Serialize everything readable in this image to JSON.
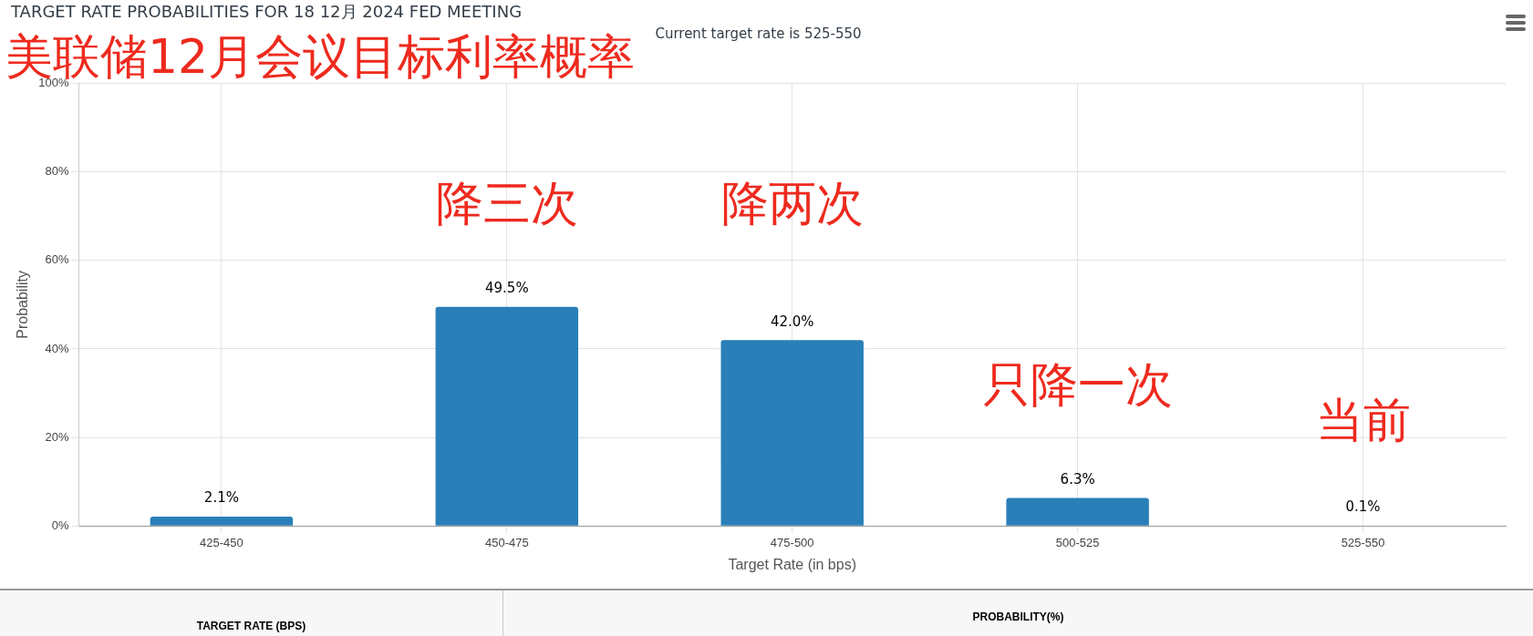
{
  "chart_data": {
    "type": "bar",
    "title": "TARGET RATE PROBABILITIES FOR 18 12月 2024 FED MEETING",
    "subtitle": "Current target rate is 525-550",
    "xlabel": "Target Rate (in bps)",
    "ylabel": "Probability",
    "categories": [
      "425-450",
      "450-475",
      "475-500",
      "500-525",
      "525-550"
    ],
    "values": [
      2.1,
      49.5,
      42.0,
      6.3,
      0.1
    ],
    "value_labels": [
      "2.1%",
      "49.5%",
      "42.0%",
      "6.3%",
      "0.1%"
    ],
    "color": "#2a7fb8",
    "ylim": [
      0,
      100
    ],
    "yticks": [
      {
        "value": 0,
        "label": "0%"
      },
      {
        "value": 20,
        "label": "20%"
      },
      {
        "value": 40,
        "label": "40%"
      },
      {
        "value": 60,
        "label": "60%"
      },
      {
        "value": 80,
        "label": "80%"
      },
      {
        "value": 100,
        "label": "100%"
      }
    ],
    "grid": true,
    "annotations": [
      "美联储12月会议目标利率概率",
      "降三次",
      "降两次",
      "只降一次",
      "当前",
      "TARGET RATE (BPS)",
      "PROBABILITY(%)"
    ]
  }
}
